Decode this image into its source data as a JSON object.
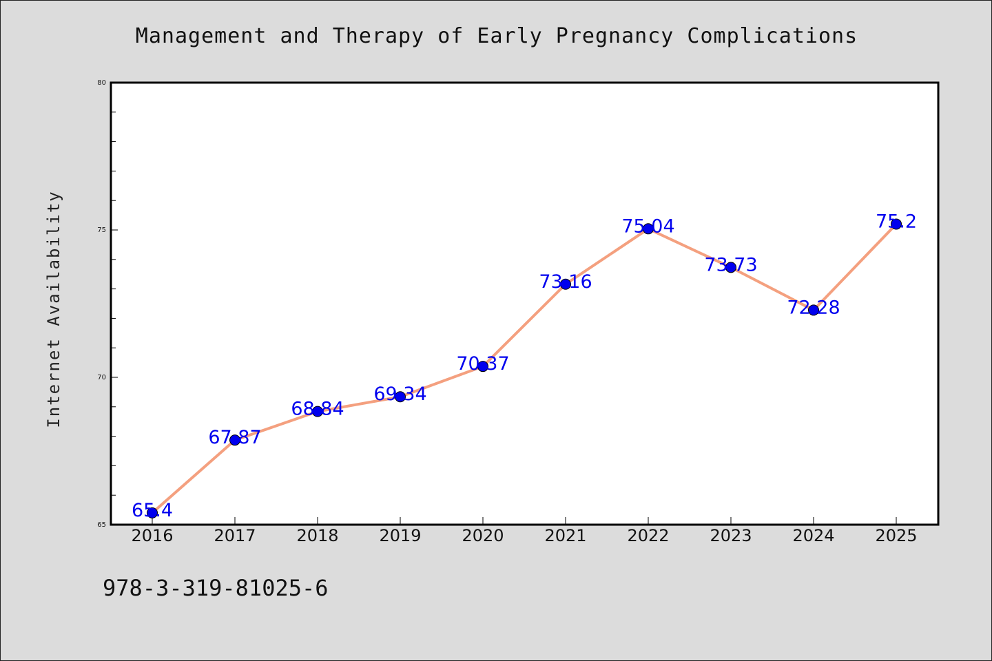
{
  "isbn": "978-3-319-81025-6",
  "colors": {
    "background": "#dcdcdc",
    "plot_background": "#ffffff",
    "line": "#f4a07f",
    "marker": "#0000ee",
    "data_label": "#0000ee"
  },
  "chart_data": {
    "type": "line",
    "title": "Management and Therapy of Early Pregnancy Complications",
    "xlabel": "",
    "ylabel": "Internet Availability",
    "categories": [
      "2016",
      "2017",
      "2018",
      "2019",
      "2020",
      "2021",
      "2022",
      "2023",
      "2024",
      "2025"
    ],
    "series": [
      {
        "values": [
          65.4,
          67.87,
          68.84,
          69.34,
          70.37,
          73.16,
          75.04,
          73.73,
          72.28,
          75.2
        ],
        "labels": [
          "65.4",
          "67.87",
          "68.84",
          "69.34",
          "70.37",
          "73.16",
          "75.04",
          "73.73",
          "72.28",
          "75.2"
        ]
      }
    ],
    "ylim": [
      65,
      80
    ],
    "yticks": [
      "65",
      "70",
      "75",
      "80"
    ],
    "grid": false,
    "legend": "none"
  }
}
